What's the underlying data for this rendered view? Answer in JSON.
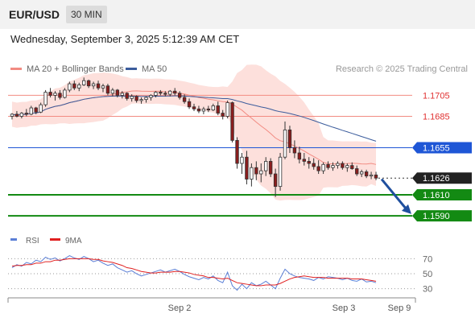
{
  "header": {
    "pair": "EUR/USD",
    "timeframe": "30 MIN"
  },
  "datetime": "Wednesday, September 3, 2025 5:12:39 AM CET",
  "legend": {
    "bb_label": "MA 20 + Bollinger Bands",
    "bb_color": "#f28b82",
    "ma50_label": "MA 50",
    "ma50_color": "#3b5c9c"
  },
  "credit": "Research © 2025 Trading Central",
  "rsi_legend": {
    "rsi_label": "RSI",
    "rsi_color": "#5b7fd6",
    "ma_label": "9MA",
    "ma_color": "#e02020"
  },
  "chart_data": {
    "type": "candlestick",
    "ylim": [
      1.1577,
      1.1723
    ],
    "x_ticks": [
      "Sep 2",
      "Sep 3",
      "Sep 9"
    ],
    "levels": [
      {
        "value": 1.1705,
        "label": "1.1705",
        "kind": "resistance-minor",
        "color": "#f28b82"
      },
      {
        "value": 1.1685,
        "label": "1.1685",
        "kind": "resistance-minor",
        "color": "#f28b82"
      },
      {
        "value": 1.1655,
        "label": "1.1655",
        "kind": "pivot",
        "color": "#1e56d6"
      },
      {
        "value": 1.1626,
        "label": "1.1626",
        "kind": "current",
        "color": "#222222"
      },
      {
        "value": 1.161,
        "label": "1.1610",
        "kind": "support",
        "color": "#138a13"
      },
      {
        "value": 1.159,
        "label": "1.1590",
        "kind": "support",
        "color": "#138a13"
      }
    ],
    "candles": [
      [
        1.1685,
        1.1688,
        1.1682,
        1.1687
      ],
      [
        1.1687,
        1.169,
        1.1684,
        1.1685
      ],
      [
        1.1685,
        1.1689,
        1.1683,
        1.1688
      ],
      [
        1.1688,
        1.1692,
        1.1685,
        1.1687
      ],
      [
        1.1687,
        1.1695,
        1.1686,
        1.1693
      ],
      [
        1.1693,
        1.1694,
        1.1687,
        1.1689
      ],
      [
        1.1689,
        1.1698,
        1.1688,
        1.1696
      ],
      [
        1.1696,
        1.171,
        1.1694,
        1.1708
      ],
      [
        1.1708,
        1.1712,
        1.1703,
        1.1705
      ],
      [
        1.1705,
        1.1709,
        1.17,
        1.1707
      ],
      [
        1.1707,
        1.171,
        1.1701,
        1.1703
      ],
      [
        1.1703,
        1.1712,
        1.1702,
        1.171
      ],
      [
        1.171,
        1.1718,
        1.1708,
        1.1716
      ],
      [
        1.1716,
        1.1719,
        1.171,
        1.1712
      ],
      [
        1.1712,
        1.1717,
        1.1709,
        1.1715
      ],
      [
        1.1715,
        1.1722,
        1.1714,
        1.1719
      ],
      [
        1.1719,
        1.172,
        1.1712,
        1.1714
      ],
      [
        1.1714,
        1.1718,
        1.1711,
        1.1716
      ],
      [
        1.1716,
        1.1719,
        1.171,
        1.1712
      ],
      [
        1.1712,
        1.1716,
        1.1708,
        1.1714
      ],
      [
        1.1714,
        1.1716,
        1.1705,
        1.1707
      ],
      [
        1.1707,
        1.1712,
        1.1704,
        1.171
      ],
      [
        1.171,
        1.1711,
        1.1703,
        1.1705
      ],
      [
        1.1705,
        1.1709,
        1.1702,
        1.1707
      ],
      [
        1.1707,
        1.1708,
        1.17,
        1.1702
      ],
      [
        1.1702,
        1.1706,
        1.1699,
        1.1704
      ],
      [
        1.1704,
        1.1705,
        1.1698,
        1.17
      ],
      [
        1.17,
        1.1703,
        1.1697,
        1.1701
      ],
      [
        1.1701,
        1.1704,
        1.1698,
        1.1703
      ],
      [
        1.1703,
        1.1706,
        1.17,
        1.1705
      ],
      [
        1.1705,
        1.1709,
        1.1703,
        1.1708
      ],
      [
        1.1708,
        1.171,
        1.1705,
        1.1707
      ],
      [
        1.1707,
        1.1709,
        1.1704,
        1.1706
      ],
      [
        1.1706,
        1.171,
        1.1704,
        1.1709
      ],
      [
        1.1709,
        1.1712,
        1.1705,
        1.1707
      ],
      [
        1.1707,
        1.1709,
        1.1701,
        1.1703
      ],
      [
        1.1703,
        1.1706,
        1.1697,
        1.1699
      ],
      [
        1.1699,
        1.1702,
        1.1692,
        1.1694
      ],
      [
        1.1694,
        1.1697,
        1.169,
        1.1692
      ],
      [
        1.1692,
        1.1695,
        1.1688,
        1.169
      ],
      [
        1.169,
        1.1694,
        1.1687,
        1.1692
      ],
      [
        1.1692,
        1.1695,
        1.1689,
        1.1691
      ],
      [
        1.1691,
        1.1697,
        1.169,
        1.1695
      ],
      [
        1.1695,
        1.1699,
        1.1686,
        1.1688
      ],
      [
        1.1688,
        1.1691,
        1.1682,
        1.1685
      ],
      [
        1.1685,
        1.17,
        1.1683,
        1.1698
      ],
      [
        1.1698,
        1.1699,
        1.166,
        1.1662
      ],
      [
        1.1662,
        1.1665,
        1.1635,
        1.164
      ],
      [
        1.164,
        1.165,
        1.163,
        1.1646
      ],
      [
        1.1646,
        1.1652,
        1.162,
        1.1625
      ],
      [
        1.1625,
        1.164,
        1.1618,
        1.1636
      ],
      [
        1.1636,
        1.1642,
        1.1624,
        1.163
      ],
      [
        1.163,
        1.164,
        1.1622,
        1.1633
      ],
      [
        1.1633,
        1.1646,
        1.1628,
        1.1642
      ],
      [
        1.1642,
        1.1645,
        1.1627,
        1.163
      ],
      [
        1.163,
        1.1635,
        1.1608,
        1.1618
      ],
      [
        1.1618,
        1.165,
        1.1614,
        1.1646
      ],
      [
        1.1646,
        1.168,
        1.1644,
        1.1672
      ],
      [
        1.1672,
        1.1676,
        1.165,
        1.1655
      ],
      [
        1.1655,
        1.1662,
        1.1645,
        1.165
      ],
      [
        1.165,
        1.1656,
        1.164,
        1.1644
      ],
      [
        1.1644,
        1.165,
        1.1638,
        1.1642
      ],
      [
        1.1642,
        1.1646,
        1.1635,
        1.164
      ],
      [
        1.164,
        1.1645,
        1.1634,
        1.1637
      ],
      [
        1.1637,
        1.1643,
        1.163,
        1.1633
      ],
      [
        1.1633,
        1.1641,
        1.163,
        1.1639
      ],
      [
        1.1639,
        1.1642,
        1.1634,
        1.1636
      ],
      [
        1.1636,
        1.1641,
        1.1633,
        1.1638
      ],
      [
        1.1638,
        1.1642,
        1.1635,
        1.164
      ],
      [
        1.164,
        1.1642,
        1.1634,
        1.1636
      ],
      [
        1.1636,
        1.164,
        1.1632,
        1.1638
      ],
      [
        1.1638,
        1.1641,
        1.1634,
        1.1635
      ],
      [
        1.1635,
        1.1638,
        1.1628,
        1.163
      ],
      [
        1.163,
        1.1634,
        1.1627,
        1.1632
      ],
      [
        1.1632,
        1.1634,
        1.1626,
        1.1628
      ],
      [
        1.1628,
        1.1632,
        1.1625,
        1.1629
      ],
      [
        1.1629,
        1.1632,
        1.1624,
        1.1626
      ]
    ],
    "rsi": {
      "ticks": [
        70,
        50,
        30
      ],
      "ylim": [
        20,
        80
      ],
      "rsi": [
        58,
        62,
        60,
        65,
        63,
        68,
        66,
        72,
        69,
        71,
        67,
        70,
        74,
        71,
        69,
        73,
        70,
        66,
        68,
        64,
        61,
        63,
        58,
        55,
        52,
        54,
        50,
        47,
        49,
        51,
        53,
        55,
        52,
        54,
        56,
        53,
        49,
        46,
        44,
        42,
        45,
        43,
        47,
        41,
        38,
        52,
        34,
        28,
        36,
        30,
        38,
        34,
        36,
        40,
        35,
        30,
        44,
        56,
        50,
        47,
        45,
        44,
        43,
        41,
        45,
        43,
        46,
        45,
        44,
        42,
        44,
        41,
        40,
        43,
        39,
        40,
        38
      ],
      "ma": [
        60,
        61,
        61,
        62,
        62,
        64,
        64,
        66,
        66,
        68,
        68,
        69,
        70,
        70,
        70,
        70,
        70,
        69,
        69,
        67,
        66,
        65,
        63,
        61,
        58,
        57,
        55,
        53,
        52,
        51,
        51,
        52,
        52,
        52,
        53,
        53,
        52,
        51,
        49,
        48,
        47,
        45,
        45,
        44,
        43,
        44,
        41,
        38,
        37,
        36,
        35,
        34,
        34,
        35,
        35,
        35,
        37,
        40,
        43,
        45,
        46,
        47,
        46,
        45,
        45,
        45,
        44,
        44,
        44,
        44,
        44,
        43,
        43,
        43,
        42,
        41,
        40
      ]
    }
  }
}
